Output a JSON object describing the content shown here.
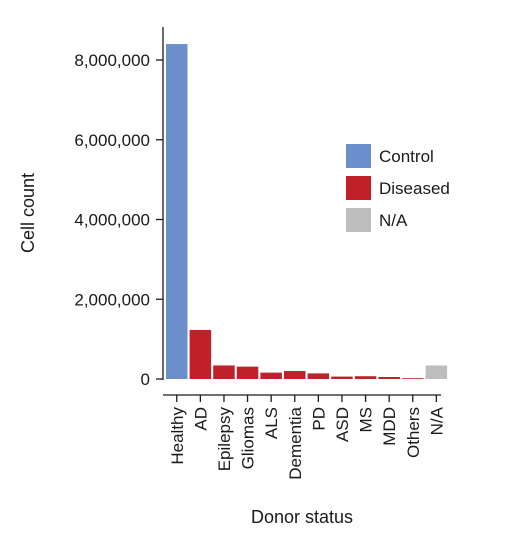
{
  "chart_data": {
    "type": "bar",
    "title": "",
    "xlabel": "Donor status",
    "ylabel": "Cell count",
    "ylim": [
      0,
      8800000
    ],
    "yticks": [
      0,
      2000000,
      4000000,
      6000000,
      8000000
    ],
    "ytick_labels": [
      "0",
      "2,000,000",
      "4,000,000",
      "6,000,000",
      "8,000,000"
    ],
    "grid": false,
    "legend_position": "right",
    "categories": [
      "Healthy",
      "AD",
      "Epilepsy",
      "Gliomas",
      "ALS",
      "Dementia",
      "PD",
      "ASD",
      "MS",
      "MDD",
      "Others",
      "N/A"
    ],
    "values": [
      8400000,
      1230000,
      340000,
      310000,
      160000,
      200000,
      140000,
      60000,
      70000,
      50000,
      20000,
      340000
    ],
    "groups": [
      "Control",
      "Diseased",
      "Diseased",
      "Diseased",
      "Diseased",
      "Diseased",
      "Diseased",
      "Diseased",
      "Diseased",
      "Diseased",
      "Diseased",
      "N/A"
    ],
    "legend": [
      {
        "name": "Control",
        "color": "#6a8fca"
      },
      {
        "name": "Diseased",
        "color": "#c0202a"
      },
      {
        "name": "N/A",
        "color": "#bdbdbd"
      }
    ]
  }
}
